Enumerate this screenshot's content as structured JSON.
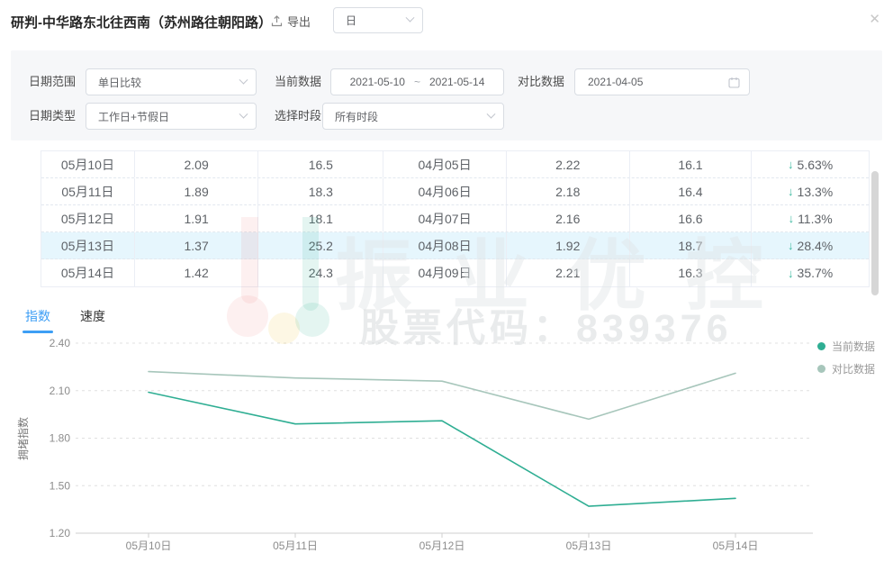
{
  "header": {
    "title": "研判-中华路东北往西南（苏州路往朝阳路）",
    "export_label": "导出",
    "granularity_value": "日"
  },
  "filters": {
    "date_range": {
      "label": "日期范围",
      "value": "单日比较"
    },
    "current_data": {
      "label": "当前数据",
      "start": "2021-05-10",
      "separator": "~",
      "end": "2021-05-14"
    },
    "compare_data": {
      "label": "对比数据",
      "value": "2021-04-05"
    },
    "date_type": {
      "label": "日期类型",
      "value": "工作日+节假日"
    },
    "time_period": {
      "label": "选择时段",
      "value": "所有时段"
    }
  },
  "table": {
    "highlight_index": 3,
    "rows": [
      {
        "cells": [
          "05月10日",
          "2.09",
          "16.5",
          "04月05日",
          "2.22",
          "16.1"
        ],
        "delta": "5.63%"
      },
      {
        "cells": [
          "05月11日",
          "1.89",
          "18.3",
          "04月06日",
          "2.18",
          "16.4"
        ],
        "delta": "13.3%"
      },
      {
        "cells": [
          "05月12日",
          "1.91",
          "18.1",
          "04月07日",
          "2.16",
          "16.6"
        ],
        "delta": "11.3%"
      },
      {
        "cells": [
          "05月13日",
          "1.37",
          "25.2",
          "04月08日",
          "1.92",
          "18.7"
        ],
        "delta": "28.4%"
      },
      {
        "cells": [
          "05月14日",
          "1.42",
          "24.3",
          "04月09日",
          "2.21",
          "16.3"
        ],
        "delta": "35.7%"
      }
    ]
  },
  "tabs": {
    "items": [
      {
        "label": "指数",
        "active": true
      },
      {
        "label": "速度",
        "active": false
      }
    ]
  },
  "chart_data": {
    "type": "line",
    "x": [
      "05月10日",
      "05月11日",
      "05月12日",
      "05月13日",
      "05月14日"
    ],
    "series": [
      {
        "name": "当前数据",
        "color": "#2fae93",
        "values": [
          2.09,
          1.89,
          1.91,
          1.37,
          1.42
        ]
      },
      {
        "name": "对比数据",
        "color": "#a7c6bb",
        "values": [
          2.22,
          2.18,
          2.16,
          1.92,
          2.21
        ]
      }
    ],
    "title": "",
    "xlabel": "",
    "ylabel": "拥堵指数",
    "ylim": [
      1.2,
      2.4
    ],
    "yticks": [
      1.2,
      1.5,
      1.8,
      2.1,
      2.4
    ],
    "grid": "horizontal-dashed",
    "legend_position": "right-top"
  },
  "watermark": {
    "brand": "振业优控",
    "stock_code": "股票代码：839376"
  },
  "colors": {
    "accent_teal": "#2fae93",
    "compare_gray_green": "#a7c6bb",
    "delta_arrow": "#3cb9a0",
    "tab_active_blue": "#3d9ef5",
    "row_highlight": "#e6f6fd",
    "axis_text": "#8c8c8c",
    "grid_line": "#e0e0e0"
  }
}
